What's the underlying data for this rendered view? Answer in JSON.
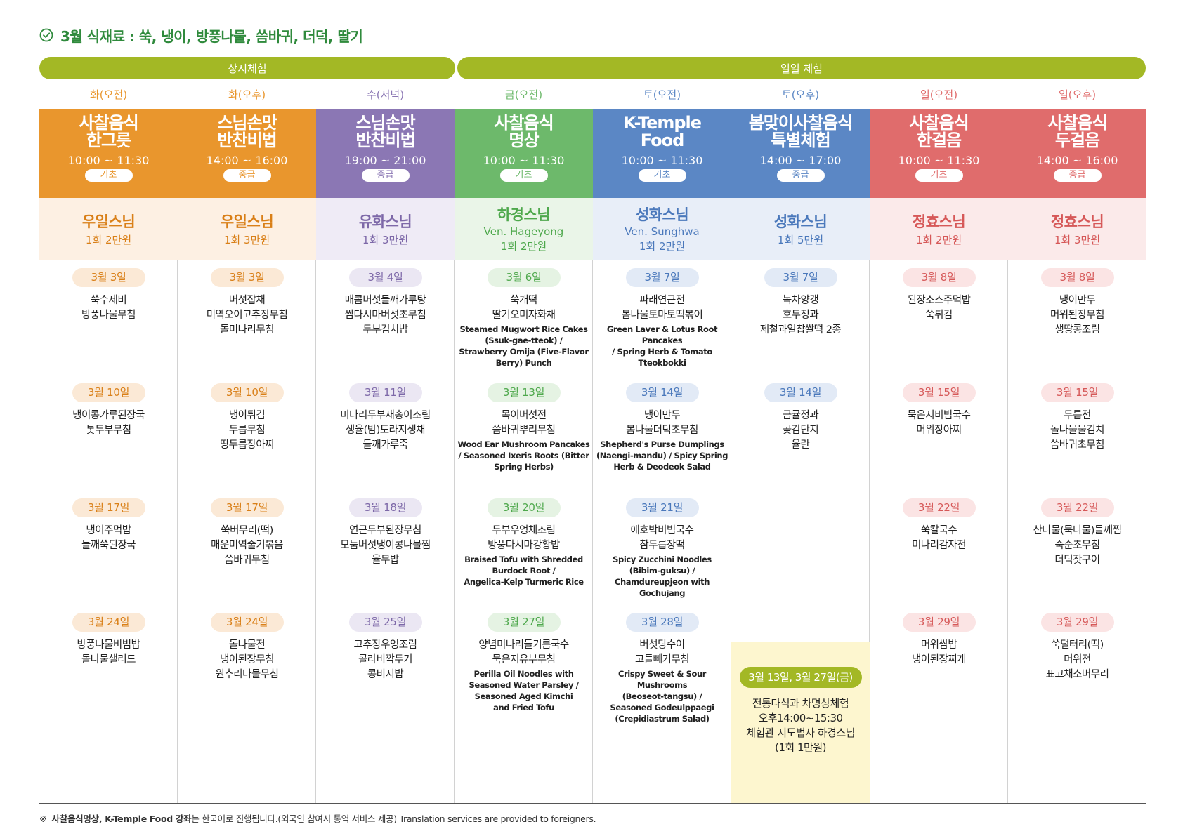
{
  "title": "3월 식재료 : 쑥, 냉이, 방풍나물, 씀바귀, 더덕, 딸기",
  "bands": {
    "regular": "상시체험",
    "oneday": "일일 체험"
  },
  "colors": {
    "orange": "#e9962d",
    "purple": "#8b77b4",
    "green": "#6db96b",
    "blue": "#5b87c5",
    "red": "#e06c6c",
    "olive": "#a3b825"
  },
  "columns": [
    {
      "day": "화(오전)",
      "name": "사찰음식\n한그릇",
      "time": "10:00 ~ 11:30",
      "level": "기초",
      "teacher": "우일스님",
      "teacher_en": "",
      "fee": "1회 2만원",
      "entries": [
        {
          "date": "3월 3일",
          "menu": "쑥수제비\n방풍나물무침",
          "eng": ""
        },
        {
          "date": "3월 10일",
          "menu": "냉이콩가루된장국\n톳두부무침",
          "eng": ""
        },
        {
          "date": "3월 17일",
          "menu": "냉이주먹밥\n들깨쑥된장국",
          "eng": ""
        },
        {
          "date": "3월 24일",
          "menu": "방풍나물비빔밥\n돌나물샐러드",
          "eng": ""
        }
      ]
    },
    {
      "day": "화(오후)",
      "name": "스님손맛\n반찬비법",
      "time": "14:00 ~ 16:00",
      "level": "중급",
      "teacher": "우일스님",
      "teacher_en": "",
      "fee": "1회 3만원",
      "entries": [
        {
          "date": "3월 3일",
          "menu": "버섯잡채\n미역오이고추장무침\n돌미나리무침",
          "eng": ""
        },
        {
          "date": "3월 10일",
          "menu": "냉이튀김\n두릅무침\n땅두릅장아찌",
          "eng": ""
        },
        {
          "date": "3월 17일",
          "menu": "쑥버무리(떡)\n매운미역줄기볶음\n씀바귀무침",
          "eng": ""
        },
        {
          "date": "3월 24일",
          "menu": "돌나물전\n냉이된장무침\n원추리나물무침",
          "eng": ""
        }
      ]
    },
    {
      "day": "수(저녁)",
      "name": "스님손맛\n반찬비법",
      "time": "19:00 ~ 21:00",
      "level": "중급",
      "teacher": "유화스님",
      "teacher_en": "",
      "fee": "1회 3만원",
      "entries": [
        {
          "date": "3월 4일",
          "menu": "매콤버섯들깨가루탕\n쌈다시마버섯초무침\n두부김치밥",
          "eng": ""
        },
        {
          "date": "3월 11일",
          "menu": "미나리두부새송이조림\n생율(밤)도라지생채\n들깨가루죽",
          "eng": ""
        },
        {
          "date": "3월 18일",
          "menu": "연근두부된장무침\n모둠버섯냉이콩나물찜\n율무밥",
          "eng": ""
        },
        {
          "date": "3월 25일",
          "menu": "고추장우엉조림\n콜라비깍두기\n콩비지밥",
          "eng": ""
        }
      ]
    },
    {
      "day": "금(오전)",
      "name": "사찰음식\n명상",
      "time": "10:00 ~ 11:30",
      "level": "기초",
      "teacher": "하경스님",
      "teacher_en": "Ven. Hageyong",
      "fee": "1회 2만원",
      "entries": [
        {
          "date": "3월 6일",
          "menu": "쑥개떡\n딸기오미자화채",
          "eng": "Steamed Mugwort Rice Cakes\n(Ssuk-gae-tteok) /\nStrawberry Omija (Five-Flavor\nBerry) Punch"
        },
        {
          "date": "3월 13일",
          "menu": "목이버섯전\n씀바귀뿌리무침",
          "eng": "Wood Ear Mushroom Pancakes\n/ Seasoned Ixeris Roots (Bitter\nSpring Herbs)"
        },
        {
          "date": "3월 20일",
          "menu": "두부우엉채조림\n방풍다시마강황밥",
          "eng": "Braised Tofu with Shredded\nBurdock Root /\nAngelica-Kelp Turmeric Rice"
        },
        {
          "date": "3월 27일",
          "menu": "양념미나리들기름국수\n묵은지유부무침",
          "eng": "Perilla Oil Noodles with\nSeasoned Water Parsley /\nSeasoned Aged Kimchi\nand Fried Tofu"
        }
      ]
    },
    {
      "day": "토(오전)",
      "name": "K-Temple\nFood",
      "time": "10:00 ~ 11:30",
      "level": "기초",
      "teacher": "성화스님",
      "teacher_en": "Ven. Sunghwa",
      "fee": "1회 2만원",
      "entries": [
        {
          "date": "3월 7일",
          "menu": "파래연근전\n봄나물토마토떡볶이",
          "eng": "Green Laver & Lotus Root\nPancakes\n/ Spring Herb & Tomato\nTteokbokki"
        },
        {
          "date": "3월 14일",
          "menu": "냉이만두\n봄나물더덕초무침",
          "eng": "Shepherd's Purse Dumplings\n(Naengi-mandu) / Spicy Spring\nHerb & Deodeok Salad"
        },
        {
          "date": "3월 21일",
          "menu": "애호박비빔국수\n참두릅장떡",
          "eng": "Spicy Zucchini Noodles\n(Bibim-guksu) /\nChamdureupjeon with\nGochujang"
        },
        {
          "date": "3월 28일",
          "menu": "버섯탕수이\n고들빼기무침",
          "eng": "Crispy Sweet & Sour Mushrooms\n(Beoseot-tangsu) /\nSeasoned Godeulppaegi\n(Crepidiastrum Salad)"
        }
      ]
    },
    {
      "day": "토(오후)",
      "name": "봄맞이사찰음식\n특별체험",
      "time": "14:00 ~ 17:00",
      "level": "중급",
      "teacher": "성화스님",
      "teacher_en": "",
      "fee": "1회 5만원",
      "entries": [
        {
          "date": "3월 7일",
          "menu": "녹차양갱\n호두정과\n제철과일찹쌀떡 2종",
          "eng": ""
        },
        {
          "date": "3월 14일",
          "menu": "금귤정과\n곶감단지\n율란",
          "eng": ""
        }
      ],
      "special": {
        "date": "3월 13일, 3월 27일(금)",
        "text": "전통다식과 차명상체험\n오후14:00~15:30\n체험관 지도법사 하경스님\n(1회 1만원)"
      }
    },
    {
      "day": "일(오전)",
      "name": "사찰음식\n한걸음",
      "time": "10:00 ~ 11:30",
      "level": "기초",
      "teacher": "정효스님",
      "teacher_en": "",
      "fee": "1회 2만원",
      "entries": [
        {
          "date": "3월 8일",
          "menu": "된장소스주먹밥\n쑥튀김",
          "eng": ""
        },
        {
          "date": "3월 15일",
          "menu": "묵은지비빔국수\n머위장아찌",
          "eng": ""
        },
        {
          "date": "3월 22일",
          "menu": "쑥칼국수\n미나리감자전",
          "eng": ""
        },
        {
          "date": "3월 29일",
          "menu": "머위쌈밥\n냉이된장찌개",
          "eng": ""
        }
      ]
    },
    {
      "day": "일(오후)",
      "name": "사찰음식\n두걸음",
      "time": "14:00 ~ 16:00",
      "level": "중급",
      "teacher": "정효스님",
      "teacher_en": "",
      "fee": "1회 3만원",
      "entries": [
        {
          "date": "3월 8일",
          "menu": "냉이만두\n머위된장무침\n생땅콩조림",
          "eng": ""
        },
        {
          "date": "3월 15일",
          "menu": "두릅전\n돌나물물김치\n씀바귀초무침",
          "eng": ""
        },
        {
          "date": "3월 22일",
          "menu": "산나물(묵나물)들깨찜\n죽순초무침\n더덕잣구이",
          "eng": ""
        },
        {
          "date": "3월 29일",
          "menu": "쑥털터리(떡)\n머위전\n표고채소버무리",
          "eng": ""
        }
      ]
    }
  ],
  "footnote": {
    "mark": "※",
    "bold": "사찰음식명상, K-Temple Food 강좌",
    "rest": "는 한국어로 진행됩니다.(외국인 참여시 통역 서비스 제공) Translation services are provided to foreigners."
  }
}
